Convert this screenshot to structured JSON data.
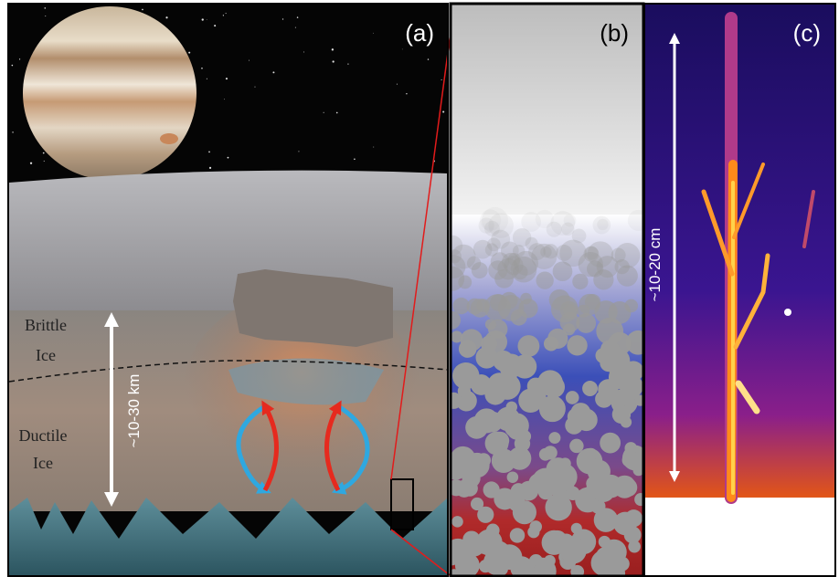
{
  "panels": [
    {
      "label": "(a)",
      "layers": [
        {
          "lines": [
            "Brittle",
            "Ice"
          ]
        },
        {
          "lines": [
            "Ductile",
            "Ice"
          ]
        }
      ],
      "thickness": "~10-30 km"
    },
    {
      "label": "(b)"
    },
    {
      "label": "(c)",
      "thickness": "~10-20 cm"
    }
  ]
}
